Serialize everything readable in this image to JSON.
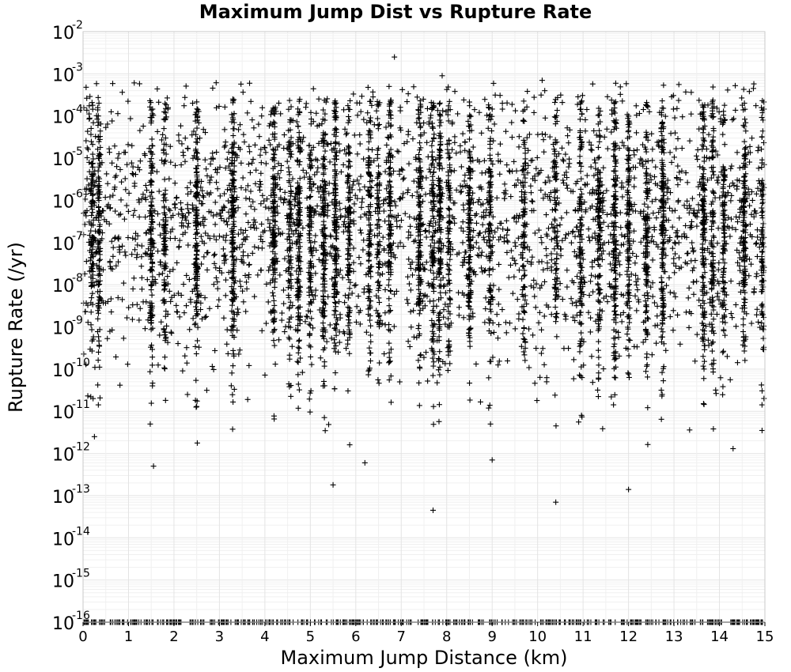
{
  "chart_data": {
    "type": "scatter",
    "title": "Maximum Jump Dist vs Rupture Rate",
    "xlabel": "Maximum Jump Distance (km)",
    "ylabel": "Rupture Rate (/yr)",
    "xlim": [
      0,
      15
    ],
    "ylim": [
      1e-16,
      0.01
    ],
    "yscale": "log",
    "grid": true,
    "marker": "+",
    "marker_color": "#000000",
    "x_ticks": [
      "0",
      "1",
      "2",
      "3",
      "4",
      "5",
      "6",
      "7",
      "8",
      "9",
      "10",
      "11",
      "12",
      "13",
      "14",
      "15"
    ],
    "y_ticks": [
      {
        "base": "10",
        "exp": "-2"
      },
      {
        "base": "10",
        "exp": "-3"
      },
      {
        "base": "10",
        "exp": "-4"
      },
      {
        "base": "10",
        "exp": "-5"
      },
      {
        "base": "10",
        "exp": "-6"
      },
      {
        "base": "10",
        "exp": "-7"
      },
      {
        "base": "10",
        "exp": "-8"
      },
      {
        "base": "10",
        "exp": "-9"
      },
      {
        "base": "10",
        "exp": "-10"
      },
      {
        "base": "10",
        "exp": "-11"
      },
      {
        "base": "10",
        "exp": "-12"
      },
      {
        "base": "10",
        "exp": "-13"
      },
      {
        "base": "10",
        "exp": "-14"
      },
      {
        "base": "10",
        "exp": "-15"
      },
      {
        "base": "10",
        "exp": "-16"
      }
    ],
    "dense_columns_x": [
      0.2,
      0.35,
      1.5,
      1.8,
      2.5,
      3.3,
      4.2,
      4.55,
      4.75,
      5.0,
      5.3,
      5.55,
      5.85,
      6.3,
      6.5,
      6.75,
      7.4,
      7.7,
      7.85,
      8.05,
      8.5,
      8.95,
      9.7,
      10.4,
      10.95,
      11.35,
      11.7,
      12.0,
      12.4,
      12.75,
      13.65,
      13.85,
      14.1,
      14.55,
      14.95
    ],
    "notable_points": [
      {
        "x": 6.85,
        "y": 0.0025
      },
      {
        "x": 7.9,
        "y": 0.0009
      },
      {
        "x": 10.1,
        "y": 0.0007
      },
      {
        "x": 1.55,
        "y": 5e-13
      },
      {
        "x": 5.5,
        "y": 1.8e-13
      },
      {
        "x": 7.7,
        "y": 4.5e-14
      },
      {
        "x": 10.4,
        "y": 7e-14
      },
      {
        "x": 12.0,
        "y": 1.4e-13
      },
      {
        "x": 14.3,
        "y": 1.3e-12
      },
      {
        "x": 0.25,
        "y": 2.5e-12
      },
      {
        "x": 9.0,
        "y": 7e-13
      },
      {
        "x": 6.2,
        "y": 6e-13
      }
    ],
    "floor_value": 1e-16
  }
}
